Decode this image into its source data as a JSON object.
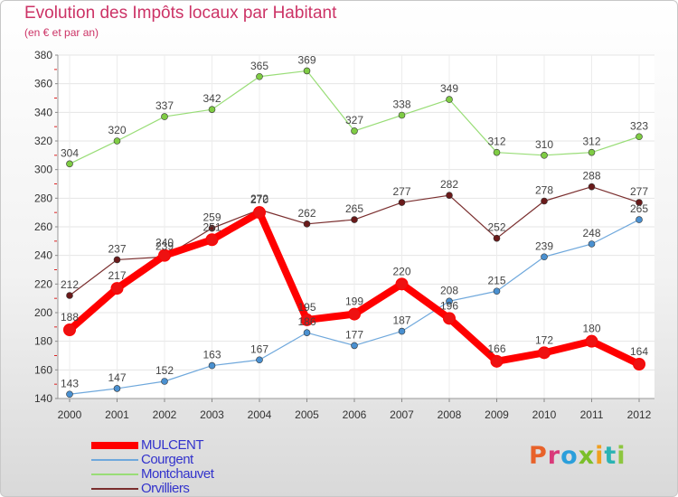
{
  "title": "Evolution des Impôts locaux par Habitant",
  "subtitle": "(en € et par an)",
  "logo": {
    "text": "Proxiti",
    "colors": [
      "#e8622a",
      "#d93a7a",
      "#2b9fdb",
      "#7bbf2a",
      "#f0a020",
      "#2bb3b3",
      "#8dc63f"
    ]
  },
  "chart_data": {
    "type": "line",
    "title": "Evolution des Impôts locaux par Habitant",
    "subtitle": "(en € et par an)",
    "xlabel": "",
    "ylabel": "",
    "ylim": [
      140,
      380
    ],
    "yticks": [
      140,
      160,
      180,
      200,
      220,
      240,
      260,
      280,
      300,
      320,
      340,
      360,
      380
    ],
    "x": [
      "2000",
      "2001",
      "2002",
      "2003",
      "2004",
      "2005",
      "2006",
      "2007",
      "2008",
      "2009",
      "2010",
      "2011",
      "2012"
    ],
    "grid": true,
    "legend_position": "bottom-left",
    "series": [
      {
        "name": "MULCENT",
        "color": "#ff0000",
        "marker": "#ee1111",
        "thick": true,
        "values": [
          188,
          217,
          240,
          251,
          270,
          195,
          199,
          220,
          196,
          166,
          172,
          180,
          164
        ]
      },
      {
        "name": "Courgent",
        "color": "#6fa8dc",
        "marker": "#4a90d0",
        "thick": false,
        "values": [
          143,
          147,
          152,
          163,
          167,
          186,
          177,
          187,
          208,
          215,
          239,
          248,
          265
        ]
      },
      {
        "name": "Montchauvet",
        "color": "#99dd77",
        "marker": "#7fcc44",
        "thick": false,
        "values": [
          304,
          320,
          337,
          342,
          365,
          369,
          327,
          338,
          349,
          312,
          310,
          312,
          323
        ]
      },
      {
        "name": "Orvilliers",
        "color": "#7a2e2e",
        "marker": "#6a1a1a",
        "thick": false,
        "values": [
          212,
          237,
          239,
          259,
          272,
          262,
          265,
          277,
          282,
          252,
          278,
          288,
          277
        ]
      }
    ]
  }
}
